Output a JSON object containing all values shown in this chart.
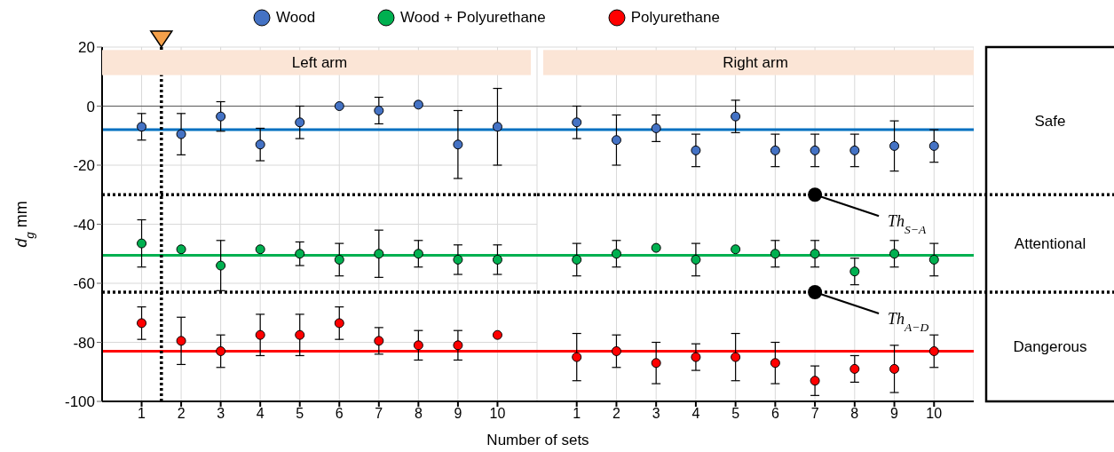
{
  "chart_data": [
    {
      "type": "scatter",
      "title": "Left arm",
      "xlabel": "Number of sets",
      "ylabel": "d$_{g}$ mm",
      "x": [
        1,
        2,
        3,
        4,
        5,
        6,
        7,
        8,
        9,
        10
      ],
      "series": [
        {
          "name": "Wood",
          "color": "#4472c4",
          "values": [
            -7,
            -9.5,
            -3.5,
            -13,
            -5.5,
            0,
            -1.5,
            0.5,
            -13,
            -7
          ],
          "errors": [
            4.5,
            7,
            5,
            5.5,
            5.5,
            null,
            4.5,
            null,
            11.5,
            13
          ]
        },
        {
          "name": "Wood + Polyurethane",
          "color": "#00b050",
          "values": [
            -46.5,
            -48.5,
            -54,
            -48.5,
            -50,
            -52,
            -50,
            -50,
            -52,
            -52
          ],
          "errors": [
            8,
            null,
            8.5,
            null,
            4,
            5.5,
            8,
            4.5,
            5,
            5
          ]
        },
        {
          "name": "Polyurethane",
          "color": "#ff0000",
          "values": [
            -73.5,
            -79.5,
            -83,
            -77.5,
            -77.5,
            -73.5,
            -79.5,
            -81,
            -81,
            -77.5
          ],
          "errors": [
            5.5,
            8,
            5.5,
            7,
            7,
            5.5,
            4.5,
            5,
            5,
            null
          ]
        }
      ],
      "xlim": [
        0,
        11
      ],
      "xticks": [
        1,
        2,
        3,
        4,
        5,
        6,
        7,
        8,
        9,
        10
      ],
      "ylim": [
        -100,
        20
      ],
      "yticks": [
        -100,
        -80,
        -60,
        -40,
        -20,
        0,
        20
      ],
      "ref_lines": [
        {
          "axis": "y",
          "value": 0,
          "color": "#595959",
          "line_style": "solid"
        },
        {
          "axis": "y",
          "value": -8,
          "color": "#0070c0",
          "line_style": "solid"
        },
        {
          "axis": "y",
          "value": -50.5,
          "color": "#00b050",
          "line_style": "solid"
        },
        {
          "axis": "y",
          "value": -83,
          "color": "#ff0000",
          "line_style": "solid"
        },
        {
          "axis": "y",
          "value": -30,
          "color": "#000000",
          "line_style": "dotted"
        },
        {
          "axis": "y",
          "value": -63,
          "color": "#000000",
          "line_style": "dotted"
        },
        {
          "axis": "x",
          "value": 1.5,
          "color": "#000000",
          "line_style": "dotted"
        }
      ],
      "grid": true,
      "legend": "top",
      "marker": "circle"
    },
    {
      "type": "scatter",
      "title": "Right arm",
      "x": [
        1,
        2,
        3,
        4,
        5,
        6,
        7,
        8,
        9,
        10
      ],
      "series": [
        {
          "color": "#4472c4",
          "values": [
            -5.5,
            -11.5,
            -7.5,
            -15,
            -3.5,
            -15,
            -15,
            -15,
            -13.5,
            -13.5
          ],
          "errors": [
            5.5,
            8.5,
            4.5,
            5.5,
            5.5,
            5.5,
            5.5,
            5.5,
            8.5,
            5.5
          ]
        },
        {
          "color": "#00b050",
          "values": [
            -52,
            -50,
            -48,
            -52,
            -48.5,
            -50,
            -50,
            -56,
            -50,
            -52
          ],
          "errors": [
            5.5,
            4.5,
            null,
            5.5,
            null,
            4.5,
            4.5,
            4.5,
            4.5,
            5.5
          ]
        },
        {
          "color": "#ff0000",
          "values": [
            -85,
            -83,
            -87,
            -85,
            -85,
            -87,
            -93,
            -89,
            -89,
            -83
          ],
          "errors": [
            8,
            5.5,
            7,
            4.5,
            8,
            7,
            5,
            4.5,
            8,
            5.5
          ]
        }
      ],
      "xlim": [
        0,
        11
      ],
      "xticks": [
        1,
        2,
        3,
        4,
        5,
        6,
        7,
        8,
        9,
        10
      ],
      "ylim": [
        -100,
        20
      ],
      "yticks": [
        -100,
        -80,
        -60,
        -40,
        -20,
        0,
        20
      ],
      "ref_lines": [
        {
          "axis": "y",
          "value": 0,
          "color": "#595959",
          "line_style": "solid"
        },
        {
          "axis": "y",
          "value": -8,
          "color": "#0070c0",
          "line_style": "solid"
        },
        {
          "axis": "y",
          "value": -50.5,
          "color": "#00b050",
          "line_style": "solid"
        },
        {
          "axis": "y",
          "value": -83,
          "color": "#ff0000",
          "line_style": "solid"
        },
        {
          "axis": "y",
          "value": -30,
          "color": "#000000",
          "line_style": "dotted"
        },
        {
          "axis": "y",
          "value": -63,
          "color": "#000000",
          "line_style": "dotted"
        }
      ],
      "annotations": [
        {
          "text": "Th$_{S−A}$",
          "x": 7,
          "y": -30
        },
        {
          "text": "Th$_{A−D}$",
          "x": 7,
          "y": -63
        },
        "Safe",
        "Attentional",
        "Dangerous"
      ],
      "tick_labels": "x",
      "grid": true,
      "marker": "circle"
    }
  ]
}
